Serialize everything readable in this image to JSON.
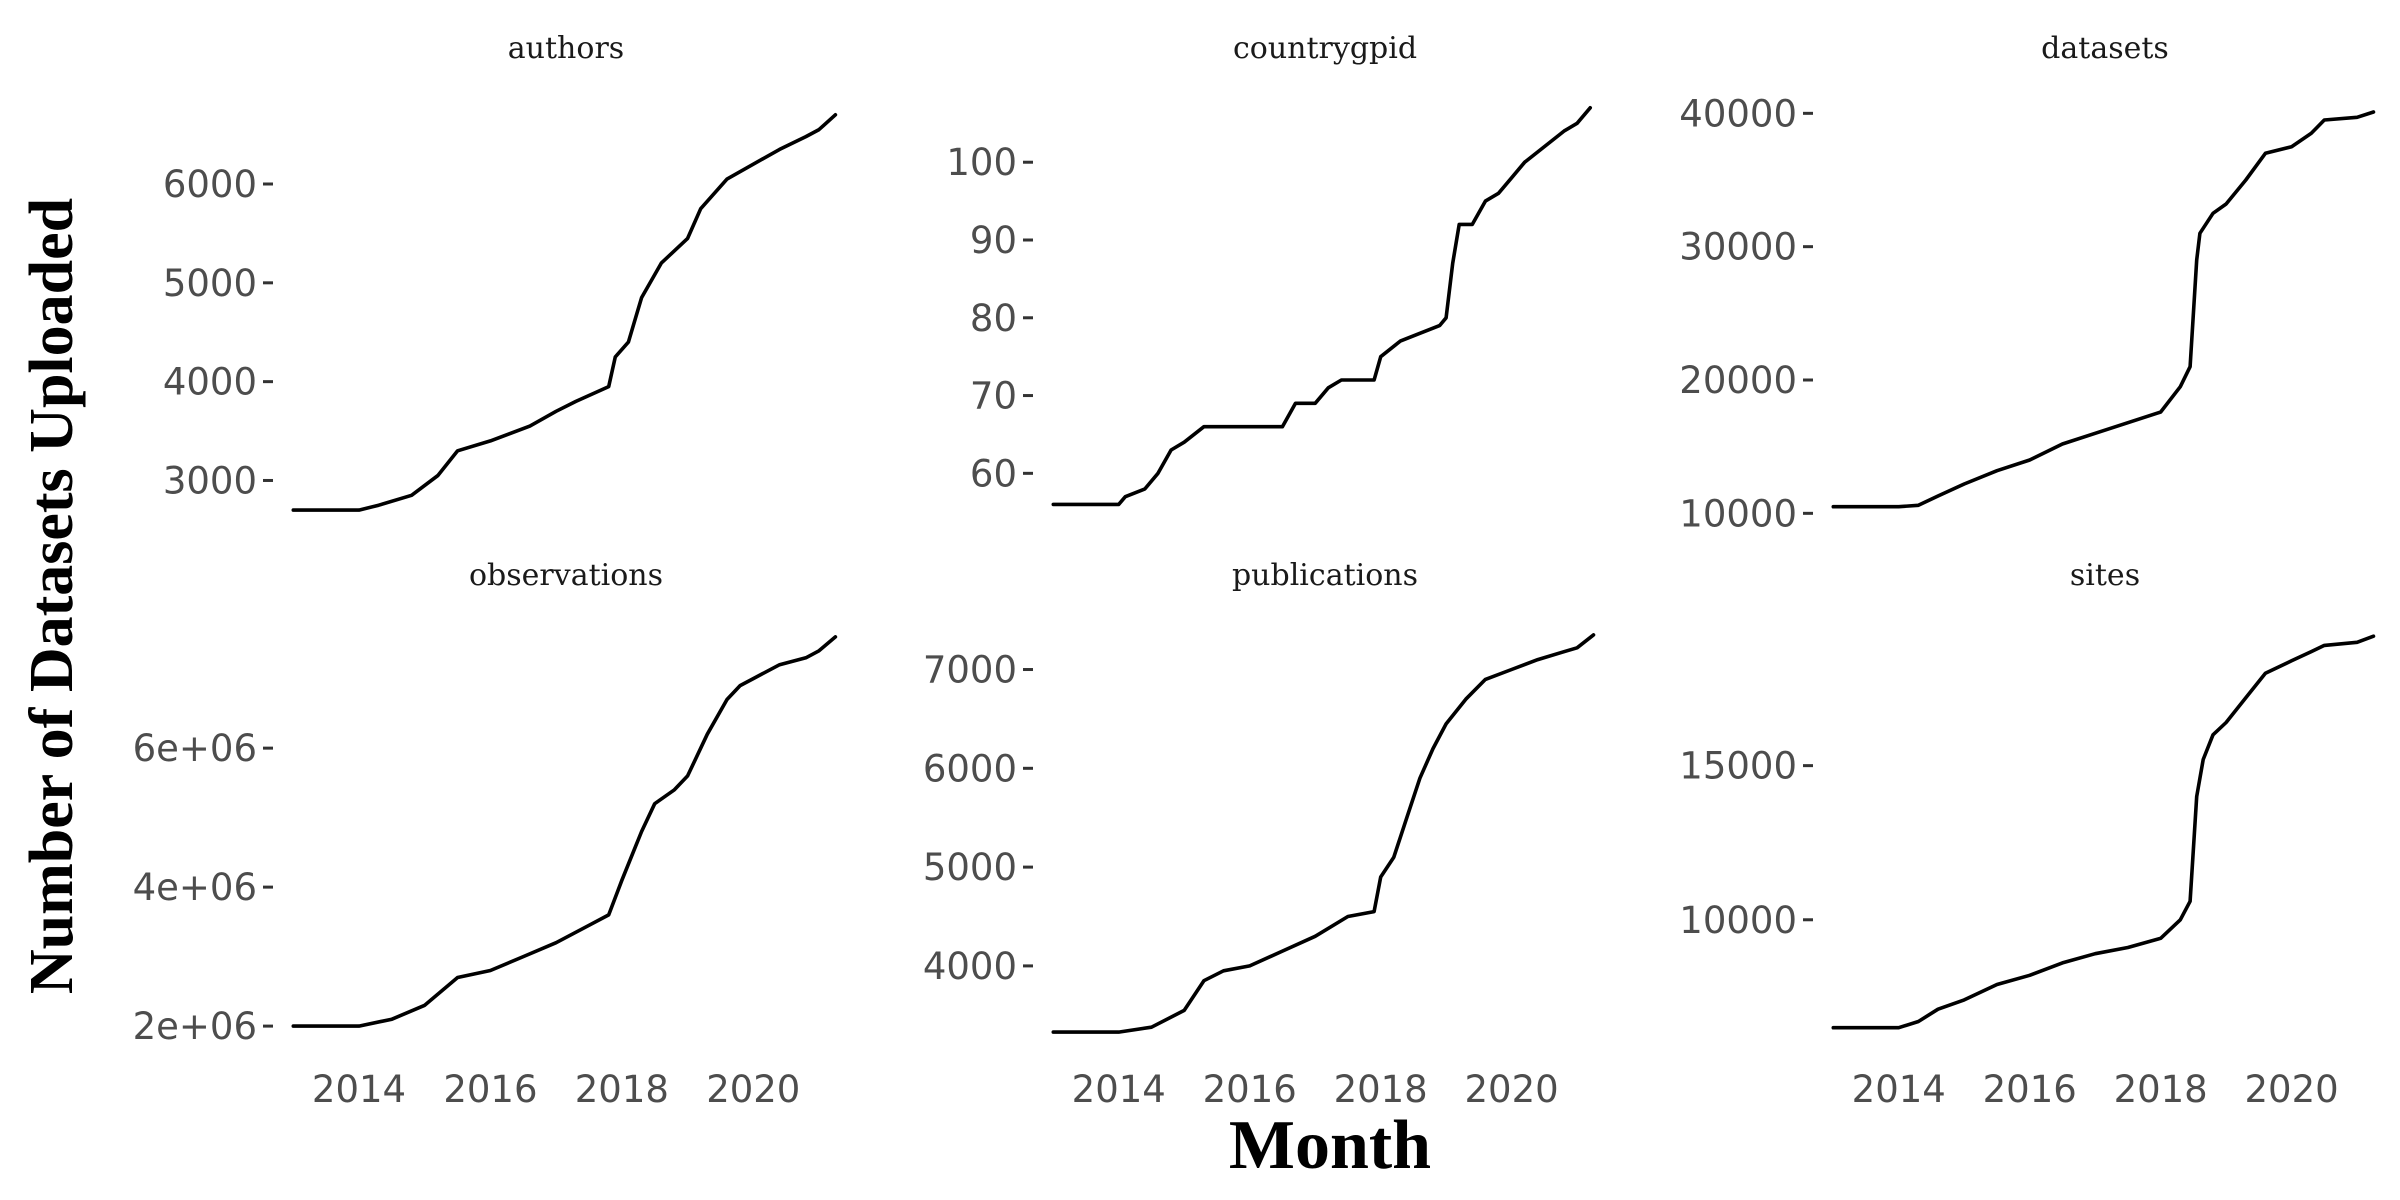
{
  "figure": {
    "xlabel": "Month",
    "ylabel": "Number of Datasets Uploaded"
  },
  "colors": {
    "line": "#000000",
    "tick_text": "#4d4d4d",
    "background": "#ffffff"
  },
  "chart_data": [
    {
      "type": "line",
      "title": "authors",
      "xlim": [
        2012.95,
        2021.35
      ],
      "x_ticks": [
        2014,
        2016,
        2018,
        2020
      ],
      "x_tick_labels": [
        "2014",
        "2016",
        "2018",
        "2020"
      ],
      "ylim": [
        2600,
        6850
      ],
      "y_ticks": [
        3000,
        4000,
        5000,
        6000
      ],
      "y_tick_labels": [
        "3000",
        "4000",
        "5000",
        "6000"
      ],
      "x": [
        2013.0,
        2014.0,
        2014.3,
        2014.8,
        2015.2,
        2015.5,
        2016.0,
        2016.6,
        2017.0,
        2017.3,
        2017.8,
        2017.9,
        2018.1,
        2018.3,
        2018.6,
        2019.0,
        2019.2,
        2019.6,
        2020.0,
        2020.4,
        2020.8,
        2021.0,
        2021.25
      ],
      "y": [
        2700,
        2700,
        2750,
        2850,
        3050,
        3300,
        3400,
        3550,
        3700,
        3800,
        3950,
        4250,
        4400,
        4850,
        5200,
        5450,
        5750,
        6050,
        6200,
        6350,
        6480,
        6550,
        6700
      ],
      "grid": false
    },
    {
      "type": "line",
      "title": "countrygpid",
      "xlim": [
        2012.95,
        2021.35
      ],
      "x_ticks": [
        2014,
        2016,
        2018,
        2020
      ],
      "x_tick_labels": [
        "2014",
        "2016",
        "2018",
        "2020"
      ],
      "ylim": [
        54,
        108
      ],
      "y_ticks": [
        60,
        70,
        80,
        90,
        100
      ],
      "y_tick_labels": [
        "60",
        "70",
        "80",
        "90",
        "100"
      ],
      "x": [
        2013.0,
        2014.0,
        2014.1,
        2014.4,
        2014.6,
        2014.8,
        2015.0,
        2015.3,
        2016.0,
        2016.5,
        2016.7,
        2017.0,
        2017.2,
        2017.4,
        2017.6,
        2017.9,
        2018.0,
        2018.3,
        2018.6,
        2018.9,
        2019.0,
        2019.1,
        2019.2,
        2019.4,
        2019.6,
        2019.8,
        2020.0,
        2020.2,
        2020.8,
        2021.0,
        2021.2
      ],
      "y": [
        56,
        56,
        57,
        58,
        60,
        63,
        64,
        66,
        66,
        66,
        69,
        69,
        71,
        72,
        72,
        72,
        75,
        77,
        78,
        79,
        80,
        87,
        92,
        92,
        95,
        96,
        98,
        100,
        104,
        105,
        107
      ],
      "grid": false
    },
    {
      "type": "line",
      "title": "datasets",
      "xlim": [
        2012.95,
        2021.35
      ],
      "x_ticks": [
        2014,
        2016,
        2018,
        2020
      ],
      "x_tick_labels": [
        "2014",
        "2016",
        "2018",
        "2020"
      ],
      "ylim": [
        9500,
        41000
      ],
      "y_ticks": [
        10000,
        20000,
        30000,
        40000
      ],
      "y_tick_labels": [
        "10000",
        "20000",
        "30000",
        "40000"
      ],
      "x": [
        2013.0,
        2014.0,
        2014.3,
        2014.6,
        2015.0,
        2015.5,
        2016.0,
        2016.5,
        2017.0,
        2017.5,
        2018.0,
        2018.3,
        2018.45,
        2018.55,
        2018.6,
        2018.8,
        2019.0,
        2019.3,
        2019.6,
        2020.0,
        2020.3,
        2020.5,
        2021.0,
        2021.25
      ],
      "y": [
        10500,
        10500,
        10600,
        11300,
        12200,
        13200,
        14000,
        15200,
        16000,
        16800,
        17600,
        19500,
        21000,
        29000,
        31000,
        32500,
        33200,
        35000,
        37000,
        37500,
        38500,
        39500,
        39700,
        40100
      ],
      "grid": false
    },
    {
      "type": "line",
      "title": "observations",
      "xlim": [
        2012.95,
        2021.35
      ],
      "x_ticks": [
        2014,
        2016,
        2018,
        2020
      ],
      "x_tick_labels": [
        "2014",
        "2016",
        "2018",
        "2020"
      ],
      "ylim": [
        1800000,
        7700000
      ],
      "y_ticks": [
        2000000,
        4000000,
        6000000
      ],
      "y_tick_labels": [
        "2e+06",
        "4e+06",
        "6e+06"
      ],
      "x": [
        2013.0,
        2014.0,
        2014.5,
        2015.0,
        2015.5,
        2016.0,
        2016.5,
        2017.0,
        2017.5,
        2017.8,
        2018.0,
        2018.3,
        2018.5,
        2018.8,
        2019.0,
        2019.3,
        2019.6,
        2019.8,
        2020.0,
        2020.4,
        2020.8,
        2021.0,
        2021.25
      ],
      "y": [
        2000000,
        2000000,
        2100000,
        2300000,
        2700000,
        2800000,
        3000000,
        3200000,
        3450000,
        3600000,
        4100000,
        4800000,
        5200000,
        5400000,
        5600000,
        6200000,
        6700000,
        6900000,
        7000000,
        7200000,
        7300000,
        7400000,
        7600000
      ],
      "grid": false
    },
    {
      "type": "line",
      "title": "publications",
      "xlim": [
        2012.95,
        2021.35
      ],
      "x_ticks": [
        2014,
        2016,
        2018,
        2020
      ],
      "x_tick_labels": [
        "2014",
        "2016",
        "2018",
        "2020"
      ],
      "ylim": [
        3250,
        7400
      ],
      "y_ticks": [
        4000,
        5000,
        6000,
        7000
      ],
      "y_tick_labels": [
        "4000",
        "5000",
        "6000",
        "7000"
      ],
      "x": [
        2013.0,
        2014.0,
        2014.5,
        2015.0,
        2015.3,
        2015.6,
        2016.0,
        2016.5,
        2017.0,
        2017.5,
        2017.9,
        2018.0,
        2018.2,
        2018.4,
        2018.6,
        2018.8,
        2019.0,
        2019.3,
        2019.6,
        2020.0,
        2020.4,
        2020.8,
        2021.0,
        2021.25
      ],
      "y": [
        3330,
        3330,
        3380,
        3550,
        3850,
        3950,
        4000,
        4150,
        4300,
        4500,
        4550,
        4900,
        5100,
        5500,
        5900,
        6200,
        6450,
        6700,
        6900,
        7000,
        7100,
        7180,
        7220,
        7350
      ],
      "grid": false
    },
    {
      "type": "line",
      "title": "sites",
      "xlim": [
        2012.95,
        2021.35
      ],
      "x_ticks": [
        2014,
        2016,
        2018,
        2020
      ],
      "x_tick_labels": [
        "2014",
        "2016",
        "2018",
        "2020"
      ],
      "ylim": [
        6100,
        19400
      ],
      "y_ticks": [
        10000,
        15000
      ],
      "y_tick_labels": [
        "10000",
        "15000"
      ],
      "x": [
        2013.0,
        2014.0,
        2014.3,
        2014.6,
        2015.0,
        2015.5,
        2016.0,
        2016.5,
        2017.0,
        2017.5,
        2018.0,
        2018.3,
        2018.45,
        2018.55,
        2018.65,
        2018.8,
        2019.0,
        2019.3,
        2019.6,
        2020.0,
        2020.3,
        2020.5,
        2021.0,
        2021.25
      ],
      "y": [
        6500,
        6500,
        6700,
        7100,
        7400,
        7900,
        8200,
        8600,
        8900,
        9100,
        9400,
        10000,
        10600,
        14000,
        15200,
        16000,
        16400,
        17200,
        18000,
        18400,
        18700,
        18900,
        19000,
        19200
      ],
      "grid": false
    }
  ]
}
